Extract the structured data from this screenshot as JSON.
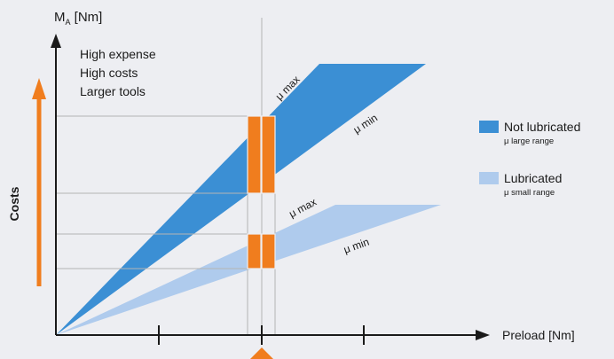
{
  "y_axis": {
    "label_main": "M",
    "label_sub": "A",
    "label_unit": " [Nm]"
  },
  "x_axis": {
    "label": "Preload [Nm]"
  },
  "cost_arrow": {
    "label": "Costs",
    "color": "#f07d1e"
  },
  "expense_notes": [
    "High expense",
    "High costs",
    "Larger tools"
  ],
  "bands": {
    "not_lubricated": {
      "color": "#3b8fd4",
      "mu_max_label": "μ max",
      "mu_min_label": "μ min"
    },
    "lubricated": {
      "color": "#afcbed",
      "mu_max_label": "μ max",
      "mu_min_label": "μ min"
    }
  },
  "legend": [
    {
      "title": "Not lubricated",
      "subtitle": "μ large range",
      "color": "#3b8fd4"
    },
    {
      "title": "Lubricated",
      "subtitle": "μ small range",
      "color": "#afcbed"
    }
  ],
  "colors": {
    "axis": "#1a1a1a",
    "guide": "#b4b4b4",
    "highlight": "#f07d1e",
    "background": "#edeef2"
  }
}
